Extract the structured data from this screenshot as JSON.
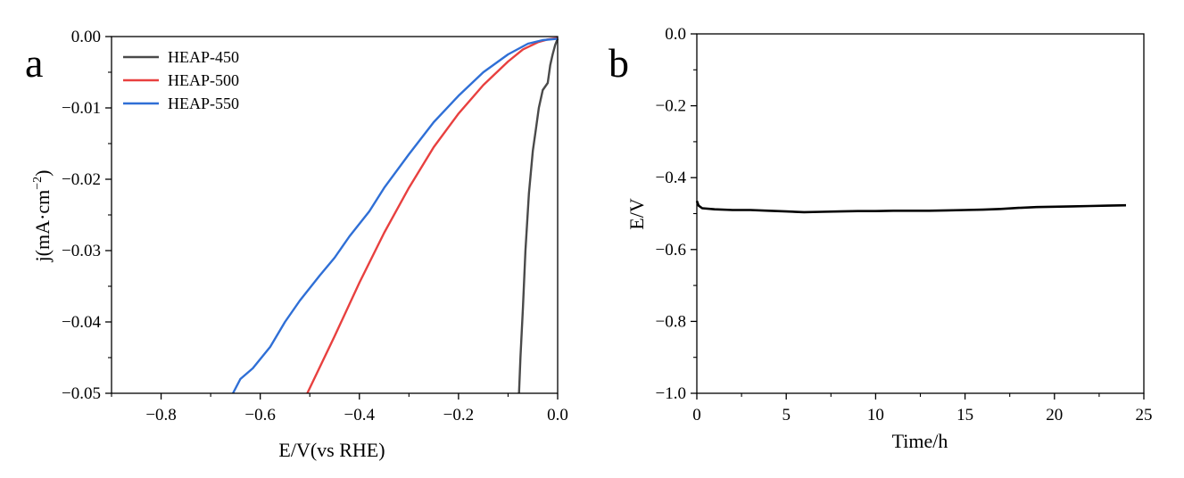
{
  "chart_data": [
    {
      "type": "line",
      "panel_label": "a",
      "xlabel": "E/V(vs RHE)",
      "ylabel": "j(mA·cm⁻²)",
      "ylabel_base": "j(mA·cm",
      "ylabel_exp": "−2",
      "ylabel_close": ")",
      "xlim": [
        -0.9,
        0.0
      ],
      "ylim": [
        -0.05,
        0.0
      ],
      "xticks": [
        -0.8,
        -0.6,
        -0.4,
        -0.2,
        0.0
      ],
      "xtick_labels": [
        "−0.8",
        "−0.6",
        "−0.4",
        "−0.2",
        "0.0"
      ],
      "yticks": [
        0.0,
        -0.01,
        -0.02,
        -0.03,
        -0.04,
        -0.05
      ],
      "ytick_labels": [
        "0.00",
        "−0.01",
        "−0.02",
        "−0.03",
        "−0.04",
        "−0.05"
      ],
      "grid": false,
      "legend_position": "top-left",
      "series": [
        {
          "name": "HEAP-450",
          "color": "#4a4a4a",
          "points": [
            [
              -0.078,
              -0.05
            ],
            [
              -0.075,
              -0.045
            ],
            [
              -0.07,
              -0.038
            ],
            [
              -0.065,
              -0.03
            ],
            [
              -0.058,
              -0.022
            ],
            [
              -0.05,
              -0.016
            ],
            [
              -0.044,
              -0.013
            ],
            [
              -0.038,
              -0.01
            ],
            [
              -0.03,
              -0.0075
            ],
            [
              -0.02,
              -0.0065
            ],
            [
              -0.015,
              -0.004
            ],
            [
              -0.01,
              -0.0025
            ],
            [
              -0.005,
              -0.0012
            ],
            [
              0.0,
              -0.0003
            ]
          ]
        },
        {
          "name": "HEAP-500",
          "color": "#e8403f",
          "points": [
            [
              -0.505,
              -0.05
            ],
            [
              -0.45,
              -0.042
            ],
            [
              -0.4,
              -0.0345
            ],
            [
              -0.35,
              -0.0275
            ],
            [
              -0.3,
              -0.0212
            ],
            [
              -0.25,
              -0.0155
            ],
            [
              -0.2,
              -0.0108
            ],
            [
              -0.15,
              -0.0068
            ],
            [
              -0.1,
              -0.0035
            ],
            [
              -0.07,
              -0.0018
            ],
            [
              -0.04,
              -0.0008
            ],
            [
              -0.02,
              -0.0004
            ],
            [
              0.0,
              -0.0002
            ]
          ]
        },
        {
          "name": "HEAP-550",
          "color": "#2f6fd6",
          "points": [
            [
              -0.655,
              -0.05
            ],
            [
              -0.64,
              -0.048
            ],
            [
              -0.615,
              -0.0465
            ],
            [
              -0.58,
              -0.0435
            ],
            [
              -0.55,
              -0.04
            ],
            [
              -0.52,
              -0.037
            ],
            [
              -0.48,
              -0.0335
            ],
            [
              -0.45,
              -0.031
            ],
            [
              -0.42,
              -0.028
            ],
            [
              -0.38,
              -0.0245
            ],
            [
              -0.35,
              -0.0212
            ],
            [
              -0.3,
              -0.0165
            ],
            [
              -0.25,
              -0.012
            ],
            [
              -0.2,
              -0.0083
            ],
            [
              -0.15,
              -0.005
            ],
            [
              -0.1,
              -0.0025
            ],
            [
              -0.06,
              -0.001
            ],
            [
              -0.03,
              -0.0005
            ],
            [
              0.0,
              -0.0003
            ]
          ]
        }
      ]
    },
    {
      "type": "line",
      "panel_label": "b",
      "xlabel": "Time/h",
      "ylabel": "E/V",
      "xlim": [
        0,
        25
      ],
      "ylim": [
        -1.0,
        0.0
      ],
      "xticks": [
        0,
        5,
        10,
        15,
        20,
        25
      ],
      "xtick_labels": [
        "0",
        "5",
        "10",
        "15",
        "20",
        "25"
      ],
      "yticks": [
        0.0,
        -0.2,
        -0.4,
        -0.6,
        -0.8,
        -1.0
      ],
      "ytick_labels": [
        "0.0",
        "−0.2",
        "−0.4",
        "−0.6",
        "−0.8",
        "−1.0"
      ],
      "grid": false,
      "series": [
        {
          "color": "#000000",
          "points": [
            [
              0.0,
              -0.465
            ],
            [
              0.1,
              -0.478
            ],
            [
              0.3,
              -0.485
            ],
            [
              1,
              -0.488
            ],
            [
              2,
              -0.49
            ],
            [
              3,
              -0.49
            ],
            [
              4,
              -0.492
            ],
            [
              5,
              -0.494
            ],
            [
              6,
              -0.496
            ],
            [
              7,
              -0.495
            ],
            [
              8,
              -0.494
            ],
            [
              9,
              -0.493
            ],
            [
              10,
              -0.493
            ],
            [
              11,
              -0.492
            ],
            [
              12,
              -0.492
            ],
            [
              13,
              -0.492
            ],
            [
              14,
              -0.491
            ],
            [
              15,
              -0.49
            ],
            [
              16,
              -0.489
            ],
            [
              17,
              -0.487
            ],
            [
              18,
              -0.484
            ],
            [
              19,
              -0.482
            ],
            [
              20,
              -0.481
            ],
            [
              21,
              -0.48
            ],
            [
              22,
              -0.479
            ],
            [
              23,
              -0.478
            ],
            [
              24,
              -0.477
            ]
          ]
        }
      ]
    }
  ]
}
